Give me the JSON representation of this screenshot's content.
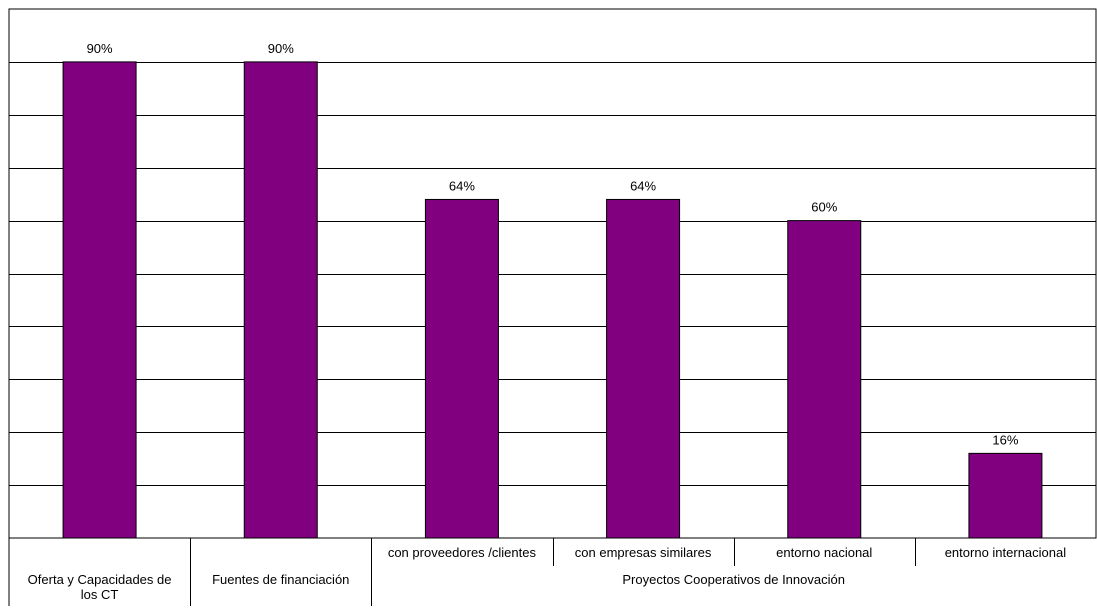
{
  "chart_data": {
    "type": "bar",
    "title": "",
    "xlabel": "",
    "ylabel": "",
    "ylim": [
      0,
      100
    ],
    "grid": true,
    "legend": "none",
    "categories": [
      "Oferta y Capacidades de los CT",
      "Fuentes de financiación",
      "con proveedores /clientes",
      "con empresas similares",
      "entorno nacional",
      "entorno internacional"
    ],
    "category_lines": [
      [
        "Oferta y Capacidades de",
        "los CT"
      ],
      [
        "Fuentes de financiación"
      ],
      [
        "con proveedores /clientes"
      ],
      [
        "con empresas similares"
      ],
      [
        "entorno nacional"
      ],
      [
        "entorno internacional"
      ]
    ],
    "values": [
      90,
      90,
      64,
      64,
      60,
      16
    ],
    "data_labels": [
      "90%",
      "90%",
      "64%",
      "64%",
      "60%",
      "16%"
    ],
    "group_label": "Proyectos Cooperativos de Innovación",
    "group_members": [
      2,
      3,
      4,
      5
    ],
    "colors": {
      "bar": "#800080",
      "bar_edge": "#000000",
      "grid": "#000000"
    }
  }
}
